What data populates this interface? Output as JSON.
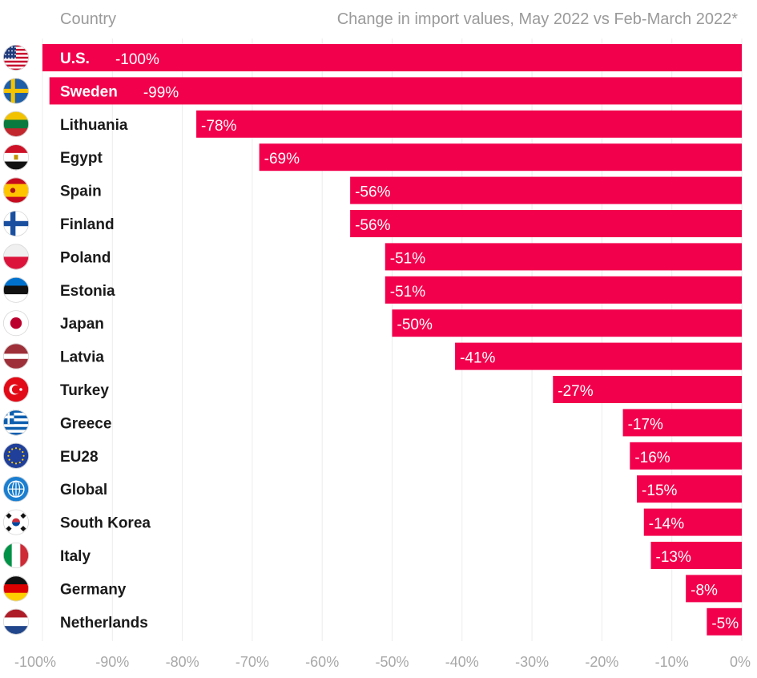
{
  "chart_data": {
    "type": "bar",
    "orientation": "horizontal",
    "header": {
      "left": "Country",
      "right": "Change in import values, May 2022 vs Feb-March 2022*"
    },
    "xlim": [
      -100,
      0
    ],
    "ticks": [
      {
        "value": -100,
        "label": "-100%"
      },
      {
        "value": -90,
        "label": "-90%"
      },
      {
        "value": -80,
        "label": "-80%"
      },
      {
        "value": -70,
        "label": "-70%"
      },
      {
        "value": -60,
        "label": "-60%"
      },
      {
        "value": -50,
        "label": "-50%"
      },
      {
        "value": -40,
        "label": "-40%"
      },
      {
        "value": -30,
        "label": "-30%"
      },
      {
        "value": -20,
        "label": "-20%"
      },
      {
        "value": -10,
        "label": "-10%"
      },
      {
        "value": 0,
        "label": "0%"
      }
    ],
    "bar_color": "#F2004C",
    "rows": [
      {
        "country": "U.S.",
        "value": -100,
        "label": "-100%",
        "flag": "us-flag-icon"
      },
      {
        "country": "Sweden",
        "value": -99,
        "label": "-99%",
        "flag": "sweden-flag-icon"
      },
      {
        "country": "Lithuania",
        "value": -78,
        "label": "-78%",
        "flag": "lithuania-flag-icon"
      },
      {
        "country": "Egypt",
        "value": -69,
        "label": "-69%",
        "flag": "egypt-flag-icon"
      },
      {
        "country": "Spain",
        "value": -56,
        "label": "-56%",
        "flag": "spain-flag-icon"
      },
      {
        "country": "Finland",
        "value": -56,
        "label": "-56%",
        "flag": "finland-flag-icon"
      },
      {
        "country": "Poland",
        "value": -51,
        "label": "-51%",
        "flag": "poland-flag-icon"
      },
      {
        "country": "Estonia",
        "value": -51,
        "label": "-51%",
        "flag": "estonia-flag-icon"
      },
      {
        "country": "Japan",
        "value": -50,
        "label": "-50%",
        "flag": "japan-flag-icon"
      },
      {
        "country": "Latvia",
        "value": -41,
        "label": "-41%",
        "flag": "latvia-flag-icon"
      },
      {
        "country": "Turkey",
        "value": -27,
        "label": "-27%",
        "flag": "turkey-flag-icon"
      },
      {
        "country": "Greece",
        "value": -17,
        "label": "-17%",
        "flag": "greece-flag-icon"
      },
      {
        "country": "EU28",
        "value": -16,
        "label": "-16%",
        "flag": "eu-flag-icon"
      },
      {
        "country": "Global",
        "value": -15,
        "label": "-15%",
        "flag": "globe-icon"
      },
      {
        "country": "South Korea",
        "value": -14,
        "label": "-14%",
        "flag": "south-korea-flag-icon"
      },
      {
        "country": "Italy",
        "value": -13,
        "label": "-13%",
        "flag": "italy-flag-icon"
      },
      {
        "country": "Germany",
        "value": -8,
        "label": "-8%",
        "flag": "germany-flag-icon"
      },
      {
        "country": "Netherlands",
        "value": -5,
        "label": "-5%",
        "flag": "netherlands-flag-icon"
      }
    ]
  }
}
